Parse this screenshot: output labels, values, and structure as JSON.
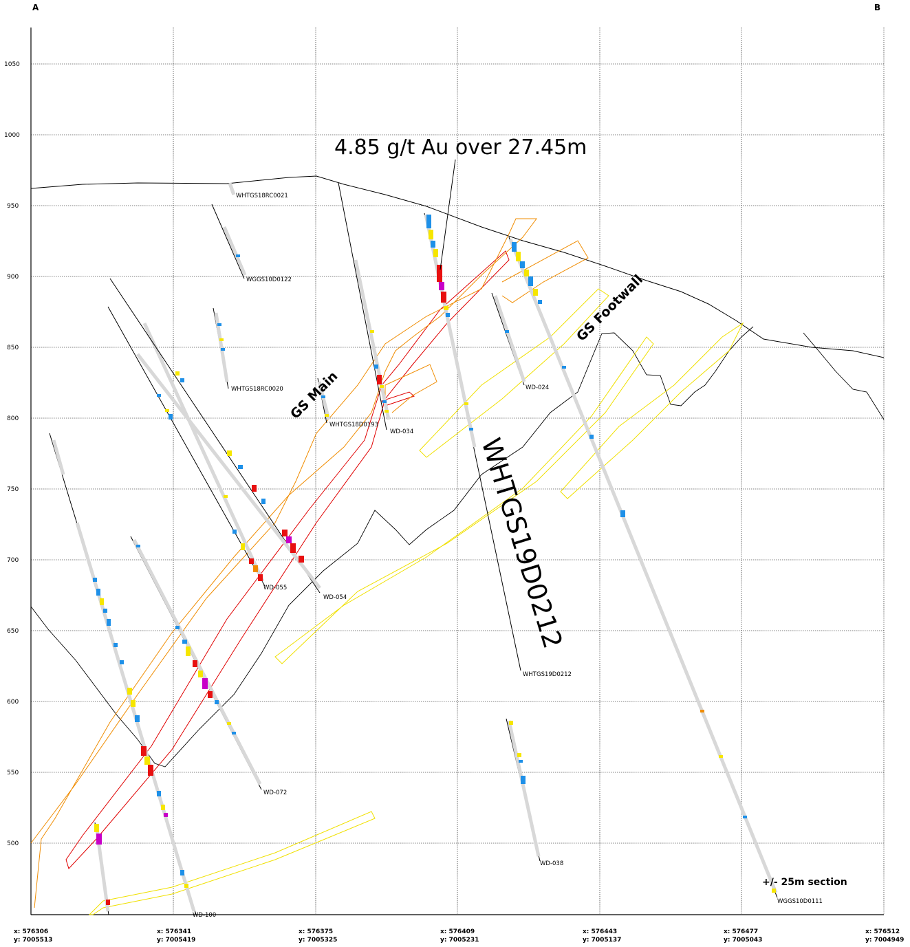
{
  "corners": {
    "left": "A",
    "right": "B"
  },
  "elevations": [
    "1050",
    "1000",
    "950",
    "900",
    "850",
    "800",
    "750",
    "700",
    "650",
    "600",
    "550",
    "500"
  ],
  "coords": [
    {
      "x": "x: 576306",
      "y": "y: 7005513"
    },
    {
      "x": "x: 576341",
      "y": "y: 7005419"
    },
    {
      "x": "x: 576375",
      "y": "y: 7005325"
    },
    {
      "x": "x: 576409",
      "y": "y: 7005231"
    },
    {
      "x": "x: 576443",
      "y": "y: 7005137"
    },
    {
      "x": "x: 576477",
      "y": "y: 7005043"
    },
    {
      "x": "x: 576512",
      "y": "y: 7004949"
    }
  ],
  "callout": "4.85 g/t Au over 27.45m",
  "highlight_hole": "WHTGS19D0212",
  "zones": {
    "main": "GS Main",
    "footwall": "GS Footwall"
  },
  "section_note": "+/- 25m section",
  "holes": {
    "rc0021": "WHTGS18RC0021",
    "d0122": "WGGS10D0122",
    "rc0020": "WHTGS18RC0020",
    "d0193": "WHTGS18D0193",
    "wd034": "WD-034",
    "wd024": "WD-024",
    "wd055": "WD-055",
    "wd054": "WD-054",
    "d0212": "WHTGS19D0212",
    "wd072": "WD-072",
    "wd038": "WD-038",
    "wd100": "WD-100",
    "d0111": "WGGS10D0111"
  },
  "colors": {
    "outline_red": "#e00000",
    "outline_orange": "#f08c00",
    "outline_yellow": "#f0e000",
    "assay_blue": "#1e90e8",
    "assay_yellow": "#f6e600",
    "assay_red": "#e81010",
    "assay_magenta": "#c800c8",
    "trace_gray": "#d8d8d8"
  }
}
